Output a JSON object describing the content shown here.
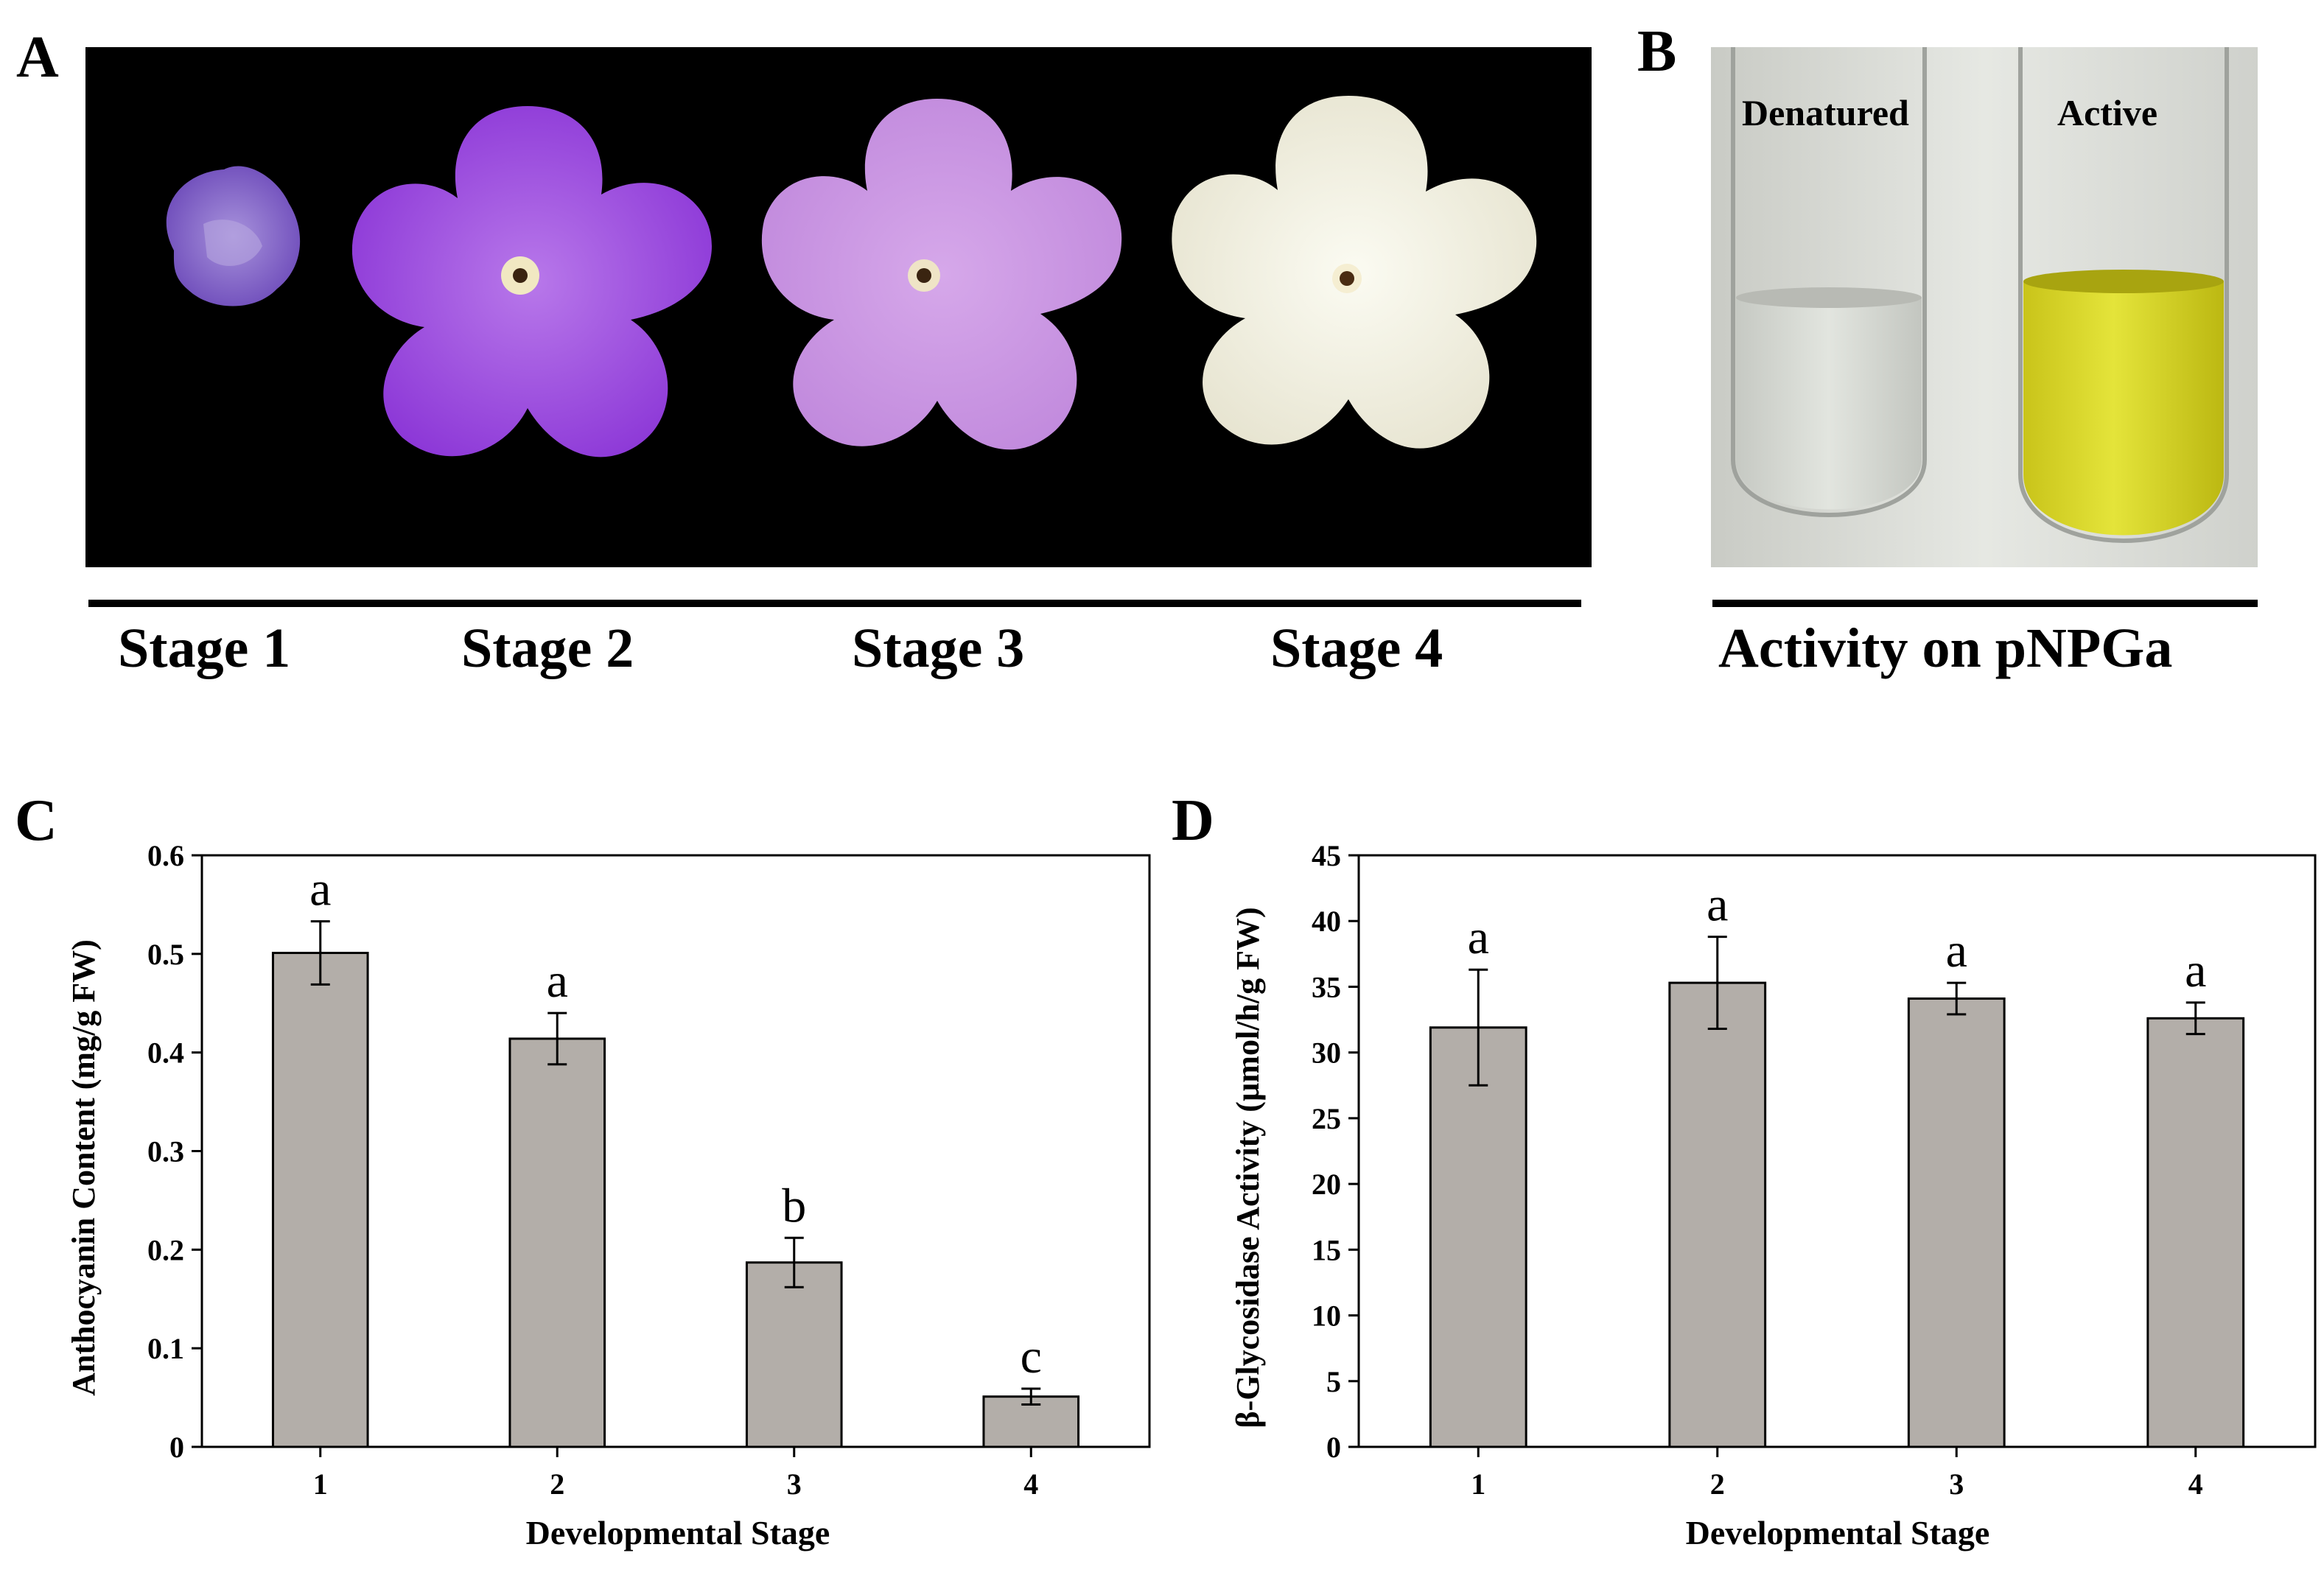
{
  "panels": {
    "a": "A",
    "b": "B",
    "c": "C",
    "d": "D"
  },
  "photo_a": {
    "stages": [
      "Stage 1",
      "Stage 2",
      "Stage 3",
      "Stage 4"
    ],
    "flower_colors": [
      "#7d5bc4",
      "#9a48e0",
      "#cf98e6",
      "#f2f0e2"
    ]
  },
  "photo_b": {
    "tubes": [
      "Denatured",
      "Active"
    ],
    "caption": "Activity on pNPGa",
    "liquid_colors": [
      "#d8dcd4",
      "#d6d820"
    ]
  },
  "chart_data": [
    {
      "type": "bar",
      "categories": [
        "1",
        "2",
        "3",
        "4"
      ],
      "values": [
        0.501,
        0.414,
        0.187,
        0.051
      ],
      "errors": [
        0.032,
        0.026,
        0.025,
        0.008
      ],
      "labels": [
        "a",
        "a",
        "b",
        "c"
      ],
      "xlabel": "Developmental Stage",
      "ylabel": "Anthocyanin Content (mg/g FW)",
      "ylim": [
        0,
        0.6
      ],
      "yticks": [
        "0",
        "0.1",
        "0.2",
        "0.3",
        "0.4",
        "0.5",
        "0.6"
      ],
      "bar_color": "#b3aea9",
      "grid": false
    },
    {
      "type": "bar",
      "categories": [
        "1",
        "2",
        "3",
        "4"
      ],
      "values": [
        31.9,
        35.3,
        34.1,
        32.6
      ],
      "errors": [
        4.4,
        3.5,
        1.2,
        1.2
      ],
      "labels": [
        "a",
        "a",
        "a",
        "a"
      ],
      "xlabel": "Developmental Stage",
      "ylabel": "β-Glycosidase Activity (µmol/h/g FW)",
      "ylim": [
        0,
        45
      ],
      "yticks": [
        "0",
        "5",
        "10",
        "15",
        "20",
        "25",
        "30",
        "35",
        "40",
        "45"
      ],
      "bar_color": "#b3aea9",
      "grid": false
    }
  ]
}
